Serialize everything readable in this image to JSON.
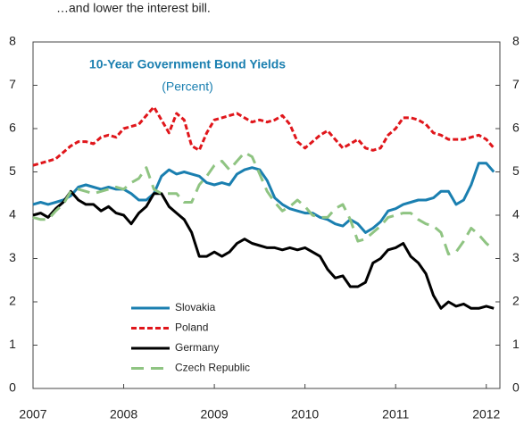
{
  "heading": "…and lower the interest bill.",
  "chart_data": {
    "type": "line",
    "title": "10-Year Government Bond Yields",
    "subtitle": "(Percent)",
    "xlim": [
      2007,
      2012.15
    ],
    "xticks": [
      2007,
      2008,
      2009,
      2010,
      2011,
      2012
    ],
    "ylim": [
      0,
      8
    ],
    "yticks": [
      0,
      1,
      2,
      3,
      4,
      5,
      6,
      7,
      8
    ],
    "y2lim": [
      0,
      8
    ],
    "y2ticks": [
      0,
      1,
      2,
      3,
      4,
      5,
      6,
      7,
      8
    ],
    "grid": false,
    "series": [
      {
        "name": "Slovakia",
        "color": "#1a7fb0",
        "dash": "none",
        "values": [
          4.25,
          4.3,
          4.25,
          4.3,
          4.35,
          4.45,
          4.65,
          4.7,
          4.65,
          4.6,
          4.65,
          4.6,
          4.6,
          4.5,
          4.35,
          4.35,
          4.5,
          4.9,
          5.05,
          4.95,
          5.0,
          4.95,
          4.9,
          4.75,
          4.7,
          4.75,
          4.7,
          4.95,
          5.05,
          5.1,
          5.05,
          4.8,
          4.4,
          4.25,
          4.15,
          4.1,
          4.05,
          4.05,
          3.95,
          3.9,
          3.8,
          3.75,
          3.9,
          3.8,
          3.6,
          3.7,
          3.85,
          4.1,
          4.15,
          4.25,
          4.3,
          4.35,
          4.35,
          4.4,
          4.55,
          4.55,
          4.25,
          4.35,
          4.7,
          5.2,
          5.2,
          5.0
        ]
      },
      {
        "name": "Poland",
        "color": "#e0161b",
        "dash": "6,3",
        "values": [
          5.15,
          5.2,
          5.25,
          5.3,
          5.45,
          5.6,
          5.7,
          5.7,
          5.65,
          5.8,
          5.85,
          5.8,
          6.0,
          6.05,
          6.1,
          6.3,
          6.5,
          6.2,
          5.9,
          6.35,
          6.2,
          5.6,
          5.5,
          5.9,
          6.2,
          6.25,
          6.3,
          6.35,
          6.25,
          6.15,
          6.2,
          6.15,
          6.2,
          6.3,
          6.1,
          5.7,
          5.55,
          5.7,
          5.85,
          5.95,
          5.75,
          5.55,
          5.65,
          5.75,
          5.55,
          5.5,
          5.55,
          5.85,
          6.0,
          6.25,
          6.25,
          6.2,
          6.1,
          5.9,
          5.85,
          5.75,
          5.75,
          5.75,
          5.8,
          5.85,
          5.75,
          5.55
        ]
      },
      {
        "name": "Germany",
        "color": "#000000",
        "dash": "none",
        "values": [
          4.0,
          4.05,
          3.95,
          4.15,
          4.3,
          4.55,
          4.35,
          4.25,
          4.25,
          4.1,
          4.2,
          4.05,
          4.0,
          3.8,
          4.05,
          4.2,
          4.5,
          4.5,
          4.2,
          4.05,
          3.9,
          3.6,
          3.05,
          3.05,
          3.15,
          3.05,
          3.15,
          3.35,
          3.45,
          3.35,
          3.3,
          3.25,
          3.25,
          3.2,
          3.25,
          3.2,
          3.25,
          3.15,
          3.05,
          2.75,
          2.55,
          2.6,
          2.35,
          2.35,
          2.45,
          2.9,
          3.0,
          3.2,
          3.25,
          3.35,
          3.05,
          2.9,
          2.65,
          2.15,
          1.85,
          2.0,
          1.9,
          1.95,
          1.85,
          1.85,
          1.9,
          1.85
        ]
      },
      {
        "name": "Czech Republic",
        "color": "#8fc482",
        "dash": "14,8",
        "values": [
          3.95,
          3.9,
          3.9,
          4.1,
          4.25,
          4.55,
          4.6,
          4.55,
          4.5,
          4.55,
          4.6,
          4.65,
          4.6,
          4.75,
          4.85,
          5.1,
          4.6,
          4.5,
          4.5,
          4.5,
          4.3,
          4.3,
          4.7,
          4.9,
          5.15,
          5.25,
          5.05,
          5.25,
          5.45,
          5.35,
          4.95,
          4.55,
          4.3,
          4.1,
          4.2,
          4.35,
          4.2,
          4.0,
          3.95,
          3.95,
          4.15,
          4.25,
          3.9,
          3.4,
          3.45,
          3.6,
          3.75,
          3.95,
          4.0,
          4.05,
          4.05,
          3.9,
          3.8,
          3.75,
          3.6,
          3.1,
          3.15,
          3.4,
          3.7,
          3.55,
          3.35,
          3.2
        ]
      }
    ],
    "x": [
      2007.0,
      2007.0833,
      2007.1667,
      2007.25,
      2007.3333,
      2007.4167,
      2007.5,
      2007.5833,
      2007.6667,
      2007.75,
      2007.8333,
      2007.9167,
      2008.0,
      2008.0833,
      2008.1667,
      2008.25,
      2008.3333,
      2008.4167,
      2008.5,
      2008.5833,
      2008.6667,
      2008.75,
      2008.8333,
      2008.9167,
      2009.0,
      2009.0833,
      2009.1667,
      2009.25,
      2009.3333,
      2009.4167,
      2009.5,
      2009.5833,
      2009.6667,
      2009.75,
      2009.8333,
      2009.9167,
      2010.0,
      2010.0833,
      2010.1667,
      2010.25,
      2010.3333,
      2010.4167,
      2010.5,
      2010.5833,
      2010.6667,
      2010.75,
      2010.8333,
      2010.9167,
      2011.0,
      2011.0833,
      2011.1667,
      2011.25,
      2011.3333,
      2011.4167,
      2011.5,
      2011.5833,
      2011.6667,
      2011.75,
      2011.8333,
      2011.9167,
      2012.0,
      2012.0833
    ]
  }
}
